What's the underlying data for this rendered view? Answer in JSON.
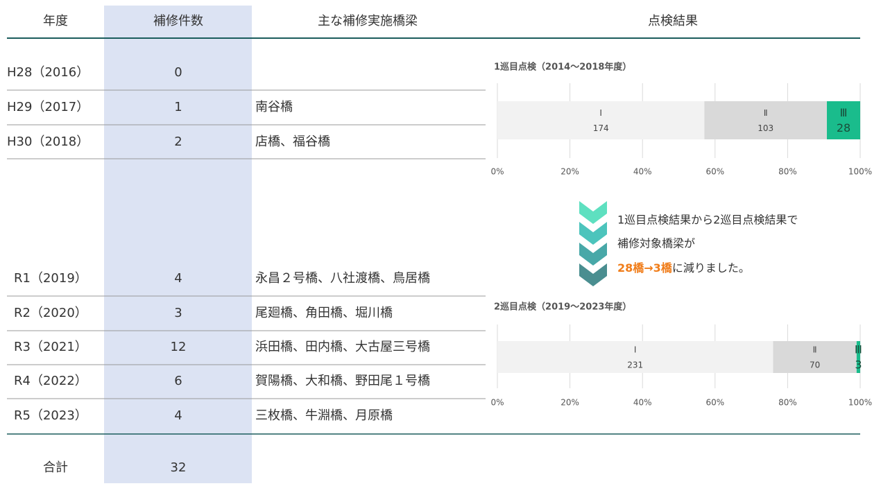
{
  "table": {
    "headers": [
      "年度",
      "補修件数",
      "主な補修実施橋梁",
      "点検結果"
    ],
    "rows": [
      {
        "year": "H28（2016）",
        "count": 0
      },
      {
        "year": "H29（2017）",
        "count": 1,
        "bridges": "南谷橋"
      },
      {
        "year": "H30（2018）",
        "count": 2,
        "bridges": "店橋、福谷橋"
      },
      {
        "year": "R1（2019）",
        "count": 4,
        "bridges": "永昌２号橋、八社渡橋、鳥居橋"
      },
      {
        "year": "R2（2020）",
        "count": 3,
        "bridges": "尾廻橋、角田橋、堀川橋"
      },
      {
        "year": "R3（2021）",
        "count": 12,
        "bridges": "浜田橋、田内橋、大古屋三号橋"
      },
      {
        "year": "R4（2022）",
        "count": 6,
        "bridges": "賀陽橋、大和橋、野田尾１号橋"
      },
      {
        "year": "R5（2023）",
        "count": 4,
        "bridges": "三枚橋、牛淵橋、月原橋"
      }
    ],
    "total": {
      "label": "合計",
      "value": 32
    }
  },
  "charts": [
    {
      "type": "stacked-bar",
      "title": "1巡目点検（2014〜2018年度）",
      "series": [
        {
          "name": "Ⅰ",
          "color": "#f2f2f2",
          "values": [
            174
          ]
        },
        {
          "name": "Ⅱ",
          "color": "#d9d9d9",
          "values": [
            103
          ]
        },
        {
          "name": "Ⅲ",
          "color": "#1abc8c",
          "values": [
            28
          ]
        }
      ],
      "xlim": [
        0,
        100
      ],
      "xticks": [
        {
          "value": 0,
          "label": "0%"
        },
        {
          "value": 20,
          "label": "20%"
        },
        {
          "value": 40,
          "label": "40%"
        },
        {
          "value": 60,
          "label": "60%"
        },
        {
          "value": 80,
          "label": "80%"
        },
        {
          "value": 100,
          "label": "100%"
        }
      ]
    },
    {
      "type": "stacked-bar",
      "title": "2巡目点検（2019〜2023年度）",
      "series": [
        {
          "name": "Ⅰ",
          "color": "#f2f2f2",
          "values": [
            231
          ]
        },
        {
          "name": "Ⅱ",
          "color": "#d9d9d9",
          "values": [
            70
          ]
        },
        {
          "name": "Ⅲ",
          "color": "#1abc8c",
          "values": [
            3
          ]
        }
      ],
      "xlim": [
        0,
        100
      ],
      "xticks": [
        {
          "value": 0,
          "label": "0%"
        },
        {
          "value": 20,
          "label": "20%"
        },
        {
          "value": 40,
          "label": "40%"
        },
        {
          "value": 60,
          "label": "60%"
        },
        {
          "value": 80,
          "label": "80%"
        },
        {
          "value": 100,
          "label": "100%"
        }
      ]
    }
  ],
  "message": {
    "line1": "1巡目点検結果から2巡目点検結果で",
    "line2": "補修対象橋梁が",
    "highlight": "28橋→3橋",
    "rest": "に減りました。"
  }
}
